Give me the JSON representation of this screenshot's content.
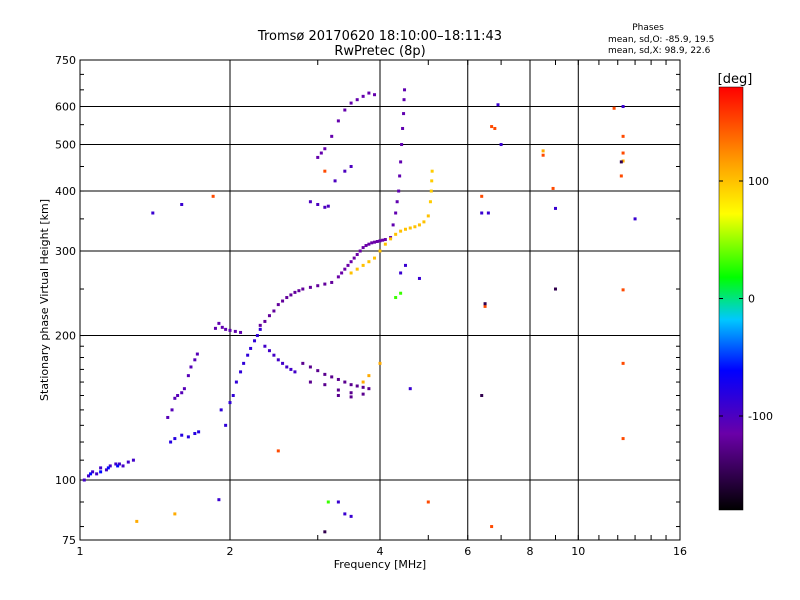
{
  "header": {
    "title_line1": "Tromsø 20170620 18:10:00–18:11:43",
    "title_line2": "RwPretec (8p)",
    "phases_title": "Phases",
    "phases_o": "mean, sd,O: -85.9, 19.5",
    "phases_x": "mean, sd,X: 98.9, 22.6"
  },
  "colorbar": {
    "label": "[deg]",
    "ticks": [
      {
        "value": 100,
        "label": "100"
      },
      {
        "value": 0,
        "label": "0"
      },
      {
        "value": -100,
        "label": "-100"
      }
    ],
    "range": [
      -180,
      180
    ]
  },
  "chart_data": {
    "type": "scatter",
    "title": "Tromsø 20170620 18:10:00–18:11:43",
    "subtitle": "RwPretec (8p)",
    "xlabel": "Frequency [MHz]",
    "ylabel": "Stationary phase Virtual Height [km]",
    "x_scale": "log",
    "y_scale": "log",
    "xlim": [
      1,
      16
    ],
    "ylim": [
      75,
      750
    ],
    "grid": true,
    "x_ticks": [
      {
        "value": 1,
        "label": "1"
      },
      {
        "value": 2,
        "label": "2"
      },
      {
        "value": 4,
        "label": "4"
      },
      {
        "value": 6,
        "label": "6"
      },
      {
        "value": 8,
        "label": "8"
      },
      {
        "value": 10,
        "label": "10"
      },
      {
        "value": 16,
        "label": "16"
      }
    ],
    "y_ticks": [
      {
        "value": 75,
        "label": "75"
      },
      {
        "value": 100,
        "label": "100"
      },
      {
        "value": 200,
        "label": "200"
      },
      {
        "value": 300,
        "label": "300"
      },
      {
        "value": 400,
        "label": "400"
      },
      {
        "value": 500,
        "label": "500"
      },
      {
        "value": 600,
        "label": "600"
      },
      {
        "value": 750,
        "label": "750"
      }
    ],
    "colorbar": {
      "label": "[deg]",
      "range": [
        -180,
        180
      ]
    },
    "point_groups": [
      {
        "name": "",
        "phase": -95,
        "points": [
          [
            1.02,
            100
          ],
          [
            1.04,
            102
          ],
          [
            1.06,
            104
          ],
          [
            1.08,
            103
          ],
          [
            1.1,
            106
          ],
          [
            1.13,
            105
          ],
          [
            1.15,
            107
          ],
          [
            1.18,
            108
          ],
          [
            1.2,
            108
          ],
          [
            1.22,
            107
          ],
          [
            1.25,
            109
          ],
          [
            1.28,
            110
          ]
        ]
      },
      {
        "name": "",
        "phase": -60,
        "points": [
          [
            1.05,
            103
          ],
          [
            1.1,
            104
          ],
          [
            1.14,
            106
          ],
          [
            1.19,
            107
          ]
        ]
      },
      {
        "name": "",
        "phase": -105,
        "points": [
          [
            1.5,
            135
          ],
          [
            1.53,
            140
          ],
          [
            1.55,
            148
          ],
          [
            1.57,
            150
          ],
          [
            1.6,
            152
          ],
          [
            1.62,
            155
          ],
          [
            1.65,
            165
          ],
          [
            1.67,
            172
          ],
          [
            1.7,
            178
          ],
          [
            1.72,
            183
          ]
        ]
      },
      {
        "name": "",
        "phase": -80,
        "points": [
          [
            1.52,
            120
          ],
          [
            1.55,
            122
          ],
          [
            1.6,
            124
          ],
          [
            1.65,
            123
          ],
          [
            1.7,
            125
          ],
          [
            1.73,
            126
          ]
        ]
      },
      {
        "name": "",
        "phase": -110,
        "points": [
          [
            1.87,
            207
          ],
          [
            1.9,
            212
          ],
          [
            1.93,
            208
          ],
          [
            1.96,
            206
          ],
          [
            2.0,
            205
          ],
          [
            2.05,
            204
          ],
          [
            2.1,
            203
          ]
        ]
      },
      {
        "name": "",
        "phase": -85,
        "points": [
          [
            1.92,
            140
          ],
          [
            1.96,
            130
          ],
          [
            2.0,
            145
          ],
          [
            2.03,
            150
          ],
          [
            2.06,
            160
          ],
          [
            2.1,
            168
          ],
          [
            2.13,
            175
          ],
          [
            2.17,
            182
          ],
          [
            2.2,
            188
          ],
          [
            2.24,
            195
          ],
          [
            2.27,
            200
          ],
          [
            2.3,
            206
          ]
        ]
      },
      {
        "name": "",
        "phase": -120,
        "points": [
          [
            2.3,
            210
          ],
          [
            2.35,
            214
          ],
          [
            2.4,
            220
          ],
          [
            2.45,
            225
          ],
          [
            2.5,
            232
          ],
          [
            2.55,
            236
          ],
          [
            2.6,
            240
          ],
          [
            2.65,
            243
          ],
          [
            2.7,
            246
          ],
          [
            2.75,
            248
          ],
          [
            2.8,
            250
          ],
          [
            2.9,
            252
          ],
          [
            3.0,
            254
          ],
          [
            3.1,
            256
          ],
          [
            3.2,
            258
          ]
        ]
      },
      {
        "name": "",
        "phase": -95,
        "points": [
          [
            2.35,
            190
          ],
          [
            2.4,
            186
          ],
          [
            2.45,
            182
          ],
          [
            2.5,
            178
          ],
          [
            2.55,
            175
          ],
          [
            2.6,
            172
          ],
          [
            2.65,
            170
          ],
          [
            2.7,
            168
          ]
        ]
      },
      {
        "name": "",
        "phase": -125,
        "points": [
          [
            2.8,
            175
          ],
          [
            2.9,
            172
          ],
          [
            3.0,
            169
          ],
          [
            3.1,
            166
          ],
          [
            3.2,
            164
          ],
          [
            3.3,
            162
          ],
          [
            3.4,
            160
          ],
          [
            3.5,
            158
          ],
          [
            3.6,
            157
          ],
          [
            3.7,
            156
          ],
          [
            3.8,
            155
          ],
          [
            3.3,
            154
          ],
          [
            3.5,
            152
          ],
          [
            3.7,
            151
          ],
          [
            2.9,
            160
          ],
          [
            3.1,
            158
          ],
          [
            3.3,
            150
          ],
          [
            3.5,
            149
          ]
        ]
      },
      {
        "name": "",
        "phase": -115,
        "points": [
          [
            3.3,
            265
          ],
          [
            3.35,
            270
          ],
          [
            3.4,
            275
          ],
          [
            3.45,
            280
          ],
          [
            3.5,
            285
          ],
          [
            3.55,
            290
          ],
          [
            3.6,
            295
          ],
          [
            3.65,
            300
          ],
          [
            3.7,
            305
          ],
          [
            3.75,
            308
          ],
          [
            3.8,
            310
          ],
          [
            3.85,
            312
          ],
          [
            3.9,
            313
          ],
          [
            3.95,
            314
          ],
          [
            4.0,
            315
          ],
          [
            4.05,
            316
          ],
          [
            4.1,
            317
          ]
        ]
      },
      {
        "name": "",
        "phase": -110,
        "points": [
          [
            4.2,
            320
          ],
          [
            4.25,
            340
          ],
          [
            4.3,
            360
          ],
          [
            4.33,
            380
          ],
          [
            4.36,
            400
          ],
          [
            4.38,
            430
          ],
          [
            4.4,
            460
          ],
          [
            4.42,
            500
          ],
          [
            4.44,
            540
          ],
          [
            4.46,
            580
          ],
          [
            4.47,
            620
          ],
          [
            4.48,
            650
          ]
        ]
      },
      {
        "name": "",
        "phase": -112,
        "points": [
          [
            3.0,
            470
          ],
          [
            3.05,
            480
          ],
          [
            3.1,
            490
          ],
          [
            3.2,
            520
          ],
          [
            3.3,
            560
          ],
          [
            3.4,
            590
          ],
          [
            3.5,
            610
          ],
          [
            3.6,
            620
          ],
          [
            3.7,
            630
          ],
          [
            3.8,
            640
          ],
          [
            3.9,
            635
          ]
        ]
      },
      {
        "name": "",
        "phase": -100,
        "points": [
          [
            2.9,
            380
          ],
          [
            3.0,
            375
          ],
          [
            3.1,
            370
          ],
          [
            3.15,
            372
          ],
          [
            3.25,
            420
          ],
          [
            3.4,
            440
          ],
          [
            3.5,
            450
          ]
        ]
      },
      {
        "name": "",
        "phase": 100,
        "points": [
          [
            3.5,
            270
          ],
          [
            3.6,
            275
          ],
          [
            3.7,
            280
          ],
          [
            3.8,
            285
          ],
          [
            3.9,
            290
          ],
          [
            4.0,
            300
          ],
          [
            4.1,
            310
          ],
          [
            4.2,
            318
          ],
          [
            4.3,
            325
          ],
          [
            4.4,
            330
          ],
          [
            4.5,
            333
          ],
          [
            4.6,
            335
          ],
          [
            4.7,
            337
          ],
          [
            4.8,
            340
          ],
          [
            4.9,
            345
          ],
          [
            5.0,
            355
          ]
        ]
      },
      {
        "name": "",
        "phase": 95,
        "points": [
          [
            5.05,
            380
          ],
          [
            5.07,
            400
          ],
          [
            5.08,
            420
          ],
          [
            5.09,
            440
          ]
        ]
      },
      {
        "name": "",
        "phase": 150,
        "points": [
          [
            1.85,
            390
          ],
          [
            6.5,
            230
          ],
          [
            6.7,
            545
          ],
          [
            6.8,
            540
          ],
          [
            8.5,
            475
          ],
          [
            8.9,
            405
          ],
          [
            11.8,
            595
          ],
          [
            12.3,
            520
          ],
          [
            12.3,
            480
          ],
          [
            12.2,
            430
          ],
          [
            12.3,
            249
          ],
          [
            12.3,
            175
          ],
          [
            12.3,
            122
          ],
          [
            6.4,
            390
          ],
          [
            3.1,
            440
          ],
          [
            2.5,
            115
          ],
          [
            5.0,
            90
          ],
          [
            6.7,
            80
          ]
        ]
      },
      {
        "name": "",
        "phase": 110,
        "points": [
          [
            1.3,
            82
          ],
          [
            1.55,
            85
          ],
          [
            3.7,
            160
          ],
          [
            3.8,
            165
          ],
          [
            4.0,
            175
          ],
          [
            8.5,
            485
          ],
          [
            12.3,
            462
          ]
        ]
      },
      {
        "name": "",
        "phase": -90,
        "points": [
          [
            1.4,
            360
          ],
          [
            1.6,
            375
          ],
          [
            6.4,
            360
          ],
          [
            7.0,
            500
          ],
          [
            6.9,
            605
          ],
          [
            9.0,
            368
          ],
          [
            12.3,
            600
          ],
          [
            13.0,
            350
          ],
          [
            1.9,
            91
          ],
          [
            3.3,
            90
          ],
          [
            3.4,
            85
          ],
          [
            3.5,
            84
          ],
          [
            4.6,
            155
          ],
          [
            4.4,
            270
          ],
          [
            4.5,
            280
          ],
          [
            4.8,
            263
          ],
          [
            6.6,
            360
          ]
        ]
      },
      {
        "name": "",
        "phase": -150,
        "points": [
          [
            6.5,
            233
          ],
          [
            6.4,
            150
          ],
          [
            9.0,
            250
          ],
          [
            12.2,
            460
          ],
          [
            3.1,
            78
          ]
        ]
      },
      {
        "name": "",
        "phase": 30,
        "points": [
          [
            3.15,
            90
          ],
          [
            4.3,
            240
          ],
          [
            4.4,
            245
          ]
        ]
      }
    ]
  }
}
